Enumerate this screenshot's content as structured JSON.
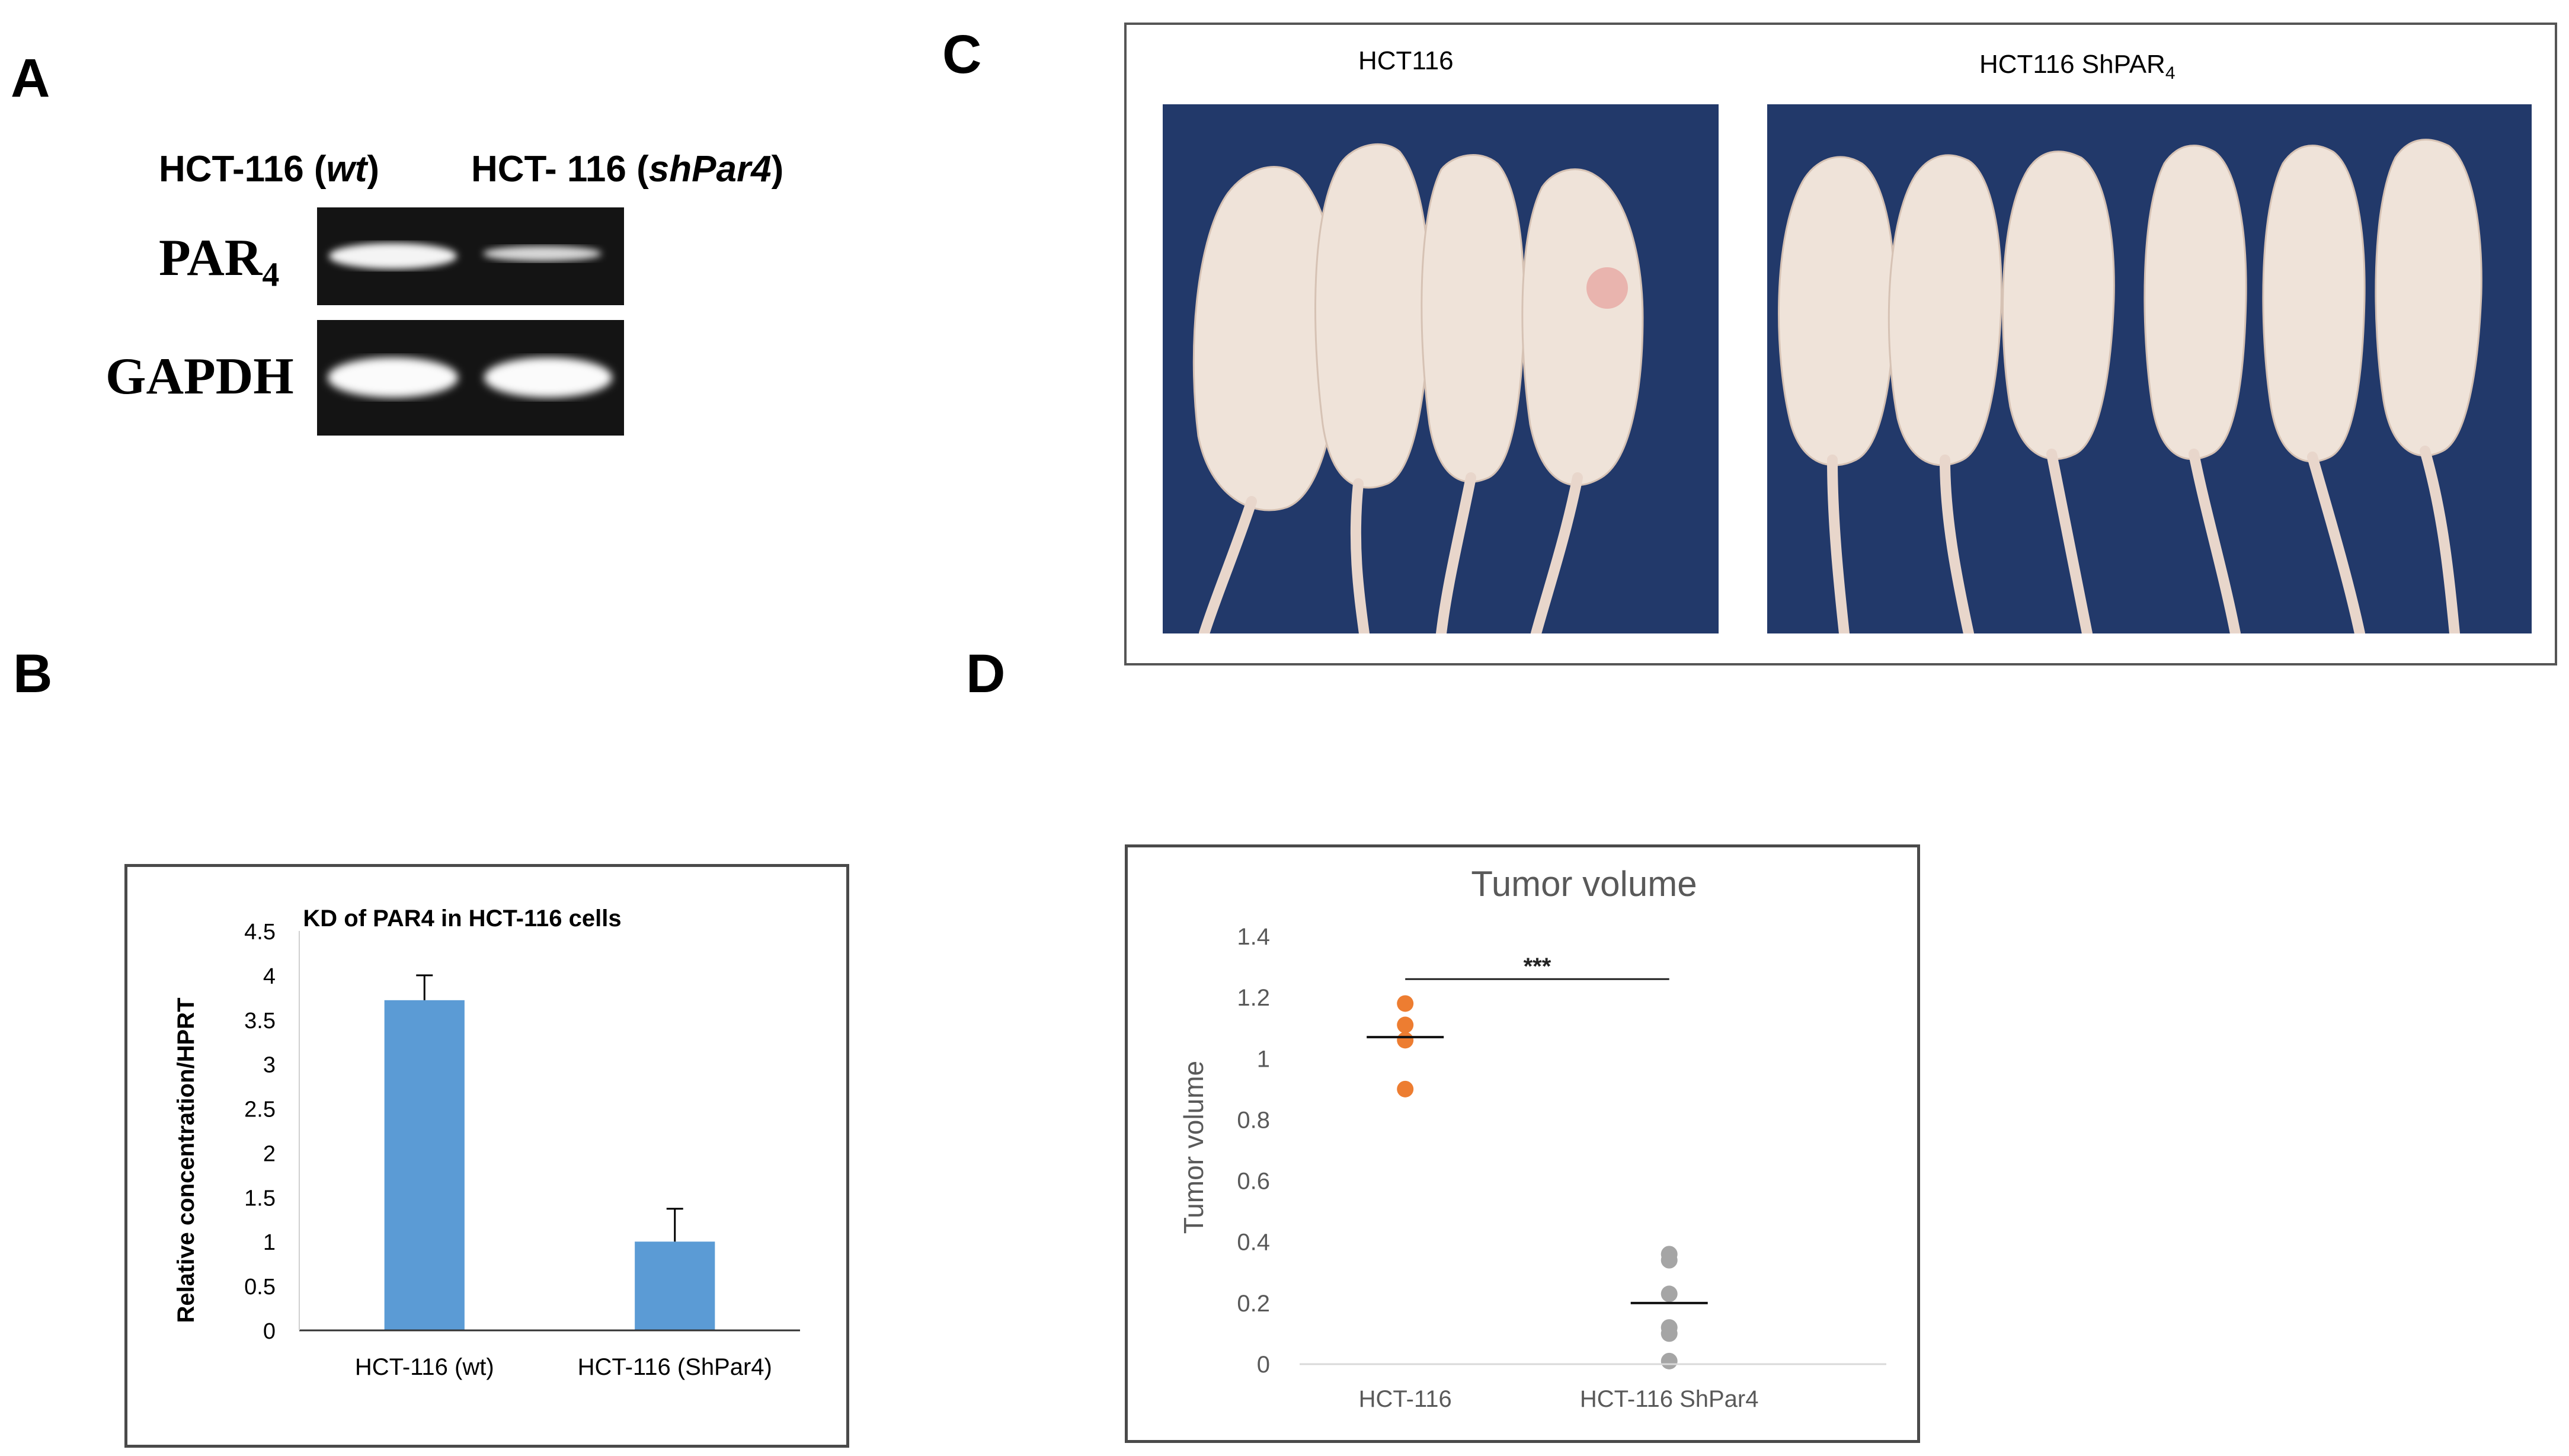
{
  "panels": {
    "a": {
      "letter": "A"
    },
    "b": {
      "letter": "B"
    },
    "c": {
      "letter": "C"
    },
    "d": {
      "letter": "D"
    }
  },
  "gel": {
    "header_wt_prefix": "HCT-116 (",
    "header_wt_italic": "wt",
    "header_wt_suffix": ")",
    "header_sh_prefix": "HCT- 116 (",
    "header_sh_italic": "shPar4",
    "header_sh_suffix": ")",
    "row1_label_main": "PAR",
    "row1_label_sub": "4",
    "row2_label": "GAPDH"
  },
  "photo_panel": {
    "caption_left": "HCT116",
    "caption_right_main": "HCT116 ShPAR",
    "caption_right_sub": "4",
    "left_colors": {
      "background": "#1f3766",
      "mouse": "#efe3d9"
    },
    "right_colors": {
      "background": "#1f3766",
      "mouse": "#efe3d9"
    }
  },
  "chart_data": [
    {
      "type": "bar",
      "title": "KD of PAR4 in HCT-116 cells",
      "ylabel": "Relative concentration/HPRT",
      "xlabel": "",
      "categories": [
        "HCT-116 (wt)",
        "HCT-116 (ShPar4)"
      ],
      "values": [
        3.72,
        1.0
      ],
      "errors": [
        0.28,
        0.37
      ],
      "ylim": [
        0,
        4.5
      ],
      "yticks": [
        "0",
        "0.5",
        "1",
        "1.5",
        "2",
        "2.5",
        "3",
        "3.5",
        "4",
        "4.5"
      ],
      "color": "#5b9bd5",
      "grid": false
    },
    {
      "type": "scatter",
      "title": "Tumor volume",
      "ylabel": "Tumor volume",
      "xlabel": "",
      "categories": [
        "HCT-116",
        "HCT-116 ShPar4"
      ],
      "series": [
        {
          "category": "HCT-116",
          "values": [
            1.18,
            1.11,
            1.06,
            0.9
          ],
          "mean": 1.07,
          "color": "#ed7d31"
        },
        {
          "category": "HCT-116 ShPar4",
          "values": [
            0.36,
            0.34,
            0.23,
            0.12,
            0.1,
            0.01
          ],
          "mean": 0.2,
          "color": "#a5a5a5"
        }
      ],
      "significance": "***",
      "ylim": [
        0,
        1.4
      ],
      "yticks": [
        "0",
        "0.2",
        "0.4",
        "0.6",
        "0.8",
        "1",
        "1.2",
        "1.4"
      ],
      "grid": false
    }
  ]
}
